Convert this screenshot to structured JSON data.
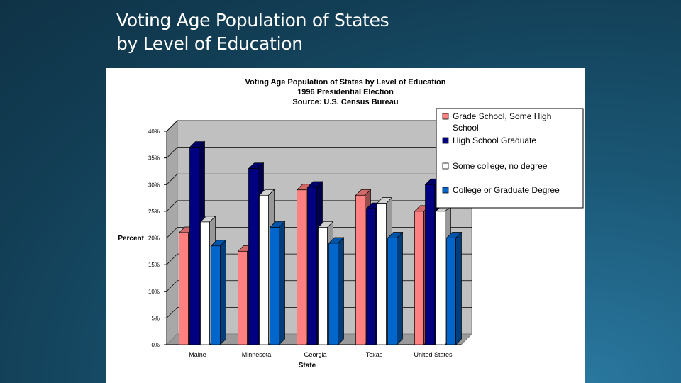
{
  "slide": {
    "title_line1": "Voting Age Population of States",
    "title_line2": "by Level of Education"
  },
  "chart_data": {
    "type": "bar",
    "title": "Voting Age Population of States by Level of Education",
    "subtitle": "1996 Presidential Election",
    "source": "Source: U.S. Census Bureau",
    "xlabel": "State",
    "ylabel": "Percent",
    "ylim": [
      0,
      40
    ],
    "yticks": [
      "0%",
      "5%",
      "10%",
      "15%",
      "20%",
      "25%",
      "30%",
      "35%",
      "40%"
    ],
    "legend_position": "top-right",
    "categories": [
      "Maine",
      "Minnesota",
      "Georgia",
      "Texas",
      "United States"
    ],
    "series": [
      {
        "name": "Grade School, Some High School",
        "color": "#ff8080",
        "values": [
          21,
          17.5,
          29,
          28,
          25
        ]
      },
      {
        "name": "High School Graduate",
        "color": "#000080",
        "values": [
          37,
          33,
          29.5,
          25.5,
          30
        ]
      },
      {
        "name": "Some college, no degree",
        "color": "#ffffff",
        "values": [
          23,
          28,
          22,
          26.5,
          25
        ]
      },
      {
        "name": "College or Graduate Degree",
        "color": "#0066cc",
        "values": [
          18.5,
          22,
          19,
          20,
          20
        ]
      }
    ]
  }
}
